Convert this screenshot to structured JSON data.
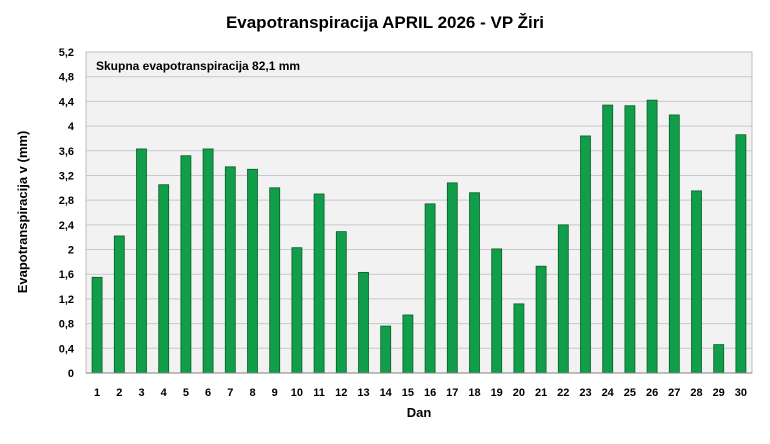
{
  "chart_data": {
    "type": "bar",
    "title": "Evapotranspiracija  APRIL 2026 - VP Žiri",
    "annotation": "Skupna evapotranspiracija  82,1 mm",
    "xlabel": "Dan",
    "ylabel": "Evapotranspiracija v  (mm)",
    "ylim": [
      0,
      5.2
    ],
    "y_ticks": [
      "0",
      "0,4",
      "0,8",
      "1,2",
      "1,6",
      "2",
      "2,4",
      "2,8",
      "3,2",
      "3,6",
      "4",
      "4,4",
      "4,8",
      "5,2"
    ],
    "categories": [
      "1",
      "2",
      "3",
      "4",
      "5",
      "6",
      "7",
      "8",
      "9",
      "10",
      "11",
      "12",
      "13",
      "14",
      "15",
      "16",
      "17",
      "18",
      "19",
      "20",
      "21",
      "22",
      "23",
      "24",
      "25",
      "26",
      "27",
      "28",
      "29",
      "30"
    ],
    "values": [
      1.55,
      2.22,
      3.63,
      3.05,
      3.52,
      3.63,
      3.34,
      3.3,
      3.0,
      2.03,
      2.9,
      2.29,
      1.63,
      0.76,
      0.94,
      2.74,
      3.08,
      2.92,
      2.01,
      1.12,
      1.73,
      2.4,
      3.84,
      4.34,
      4.33,
      4.42,
      4.18,
      2.95,
      0.46,
      3.86
    ],
    "grid": true,
    "legend": "none",
    "colors": {
      "bar_fill": "#109e4a",
      "bar_stroke": "#0a5c2b",
      "plot_bg": "#f2f2f2",
      "grid": "#c8c8c8"
    }
  }
}
